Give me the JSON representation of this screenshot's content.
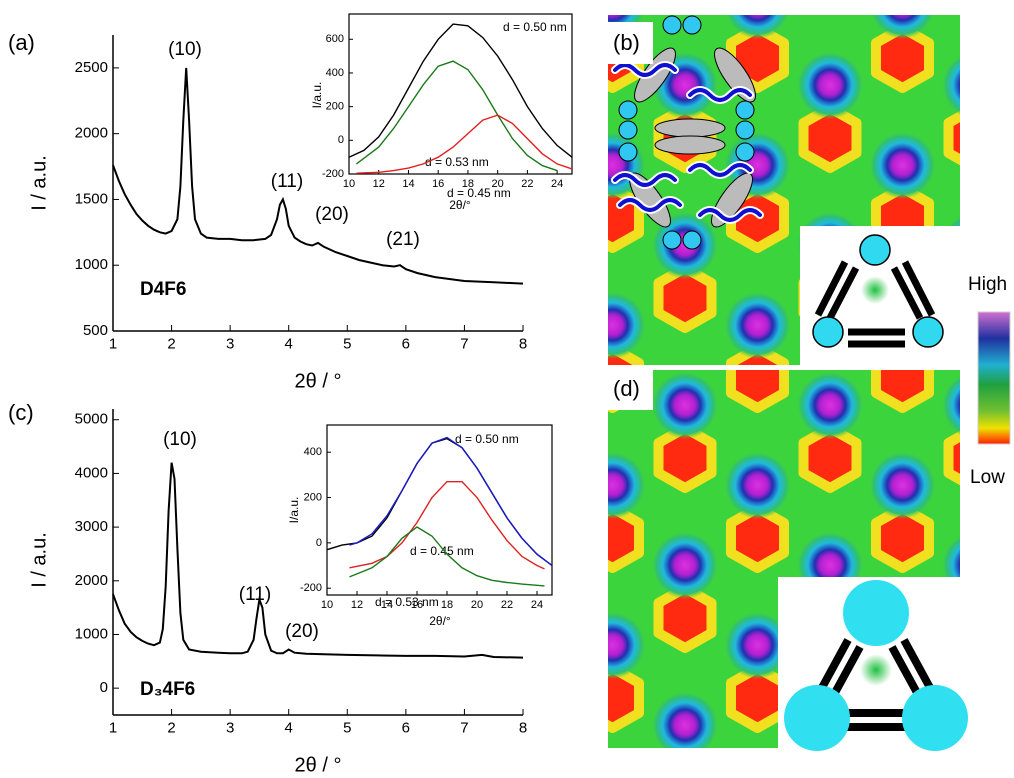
{
  "chart_data": [
    {
      "type": "line",
      "panel_label": "(a)",
      "sample": "D4F6",
      "annotations": [
        "(10)",
        "(11)",
        "(20)",
        "(21)"
      ],
      "x_label": "2θ / °",
      "y_label": "I / a.u.",
      "xlim": [
        1,
        8
      ],
      "xticks": [
        1,
        2,
        3,
        4,
        5,
        6,
        7,
        8
      ],
      "ylim": [
        500,
        2750
      ],
      "yticks": [
        500,
        1000,
        1500,
        2000,
        2500
      ],
      "series": [
        {
          "color": "#000000",
          "x": [
            1,
            1.1,
            1.2,
            1.3,
            1.4,
            1.5,
            1.6,
            1.7,
            1.8,
            1.9,
            2.0,
            2.1,
            2.15,
            2.2,
            2.25,
            2.3,
            2.35,
            2.4,
            2.5,
            2.6,
            2.8,
            3.0,
            3.2,
            3.4,
            3.6,
            3.7,
            3.8,
            3.85,
            3.9,
            3.95,
            4.0,
            4.1,
            4.2,
            4.3,
            4.4,
            4.5,
            4.6,
            4.8,
            5.0,
            5.2,
            5.4,
            5.6,
            5.8,
            5.9,
            6.0,
            6.2,
            6.5,
            7.0,
            7.5,
            8.0
          ],
          "values": [
            1760,
            1640,
            1540,
            1460,
            1390,
            1340,
            1300,
            1270,
            1250,
            1240,
            1260,
            1350,
            1600,
            2100,
            2500,
            2100,
            1600,
            1350,
            1240,
            1210,
            1200,
            1200,
            1190,
            1190,
            1200,
            1230,
            1350,
            1460,
            1500,
            1430,
            1300,
            1210,
            1180,
            1160,
            1150,
            1170,
            1140,
            1100,
            1070,
            1040,
            1020,
            1000,
            990,
            1000,
            970,
            940,
            910,
            880,
            870,
            860
          ]
        }
      ]
    },
    {
      "type": "line",
      "x_label": "2θ/°",
      "y_label": "I/a.u.",
      "xlim": [
        10,
        25
      ],
      "xticks": [
        10,
        12,
        14,
        16,
        18,
        20,
        22,
        24
      ],
      "ylim": [
        -200,
        750
      ],
      "yticks": [
        -200,
        0,
        200,
        400,
        600
      ],
      "series": [
        {
          "name": "d = 0.50 nm",
          "color": "#000000",
          "x": [
            10,
            11,
            12,
            13,
            14,
            15,
            16,
            17,
            18,
            19,
            20,
            21,
            22,
            23,
            24,
            25
          ],
          "values": [
            -100,
            -60,
            20,
            150,
            310,
            470,
            600,
            690,
            680,
            610,
            500,
            360,
            200,
            70,
            -30,
            -100
          ]
        },
        {
          "name": "d = 0.53 nm",
          "color": "#1a7a1a",
          "x": [
            10.5,
            12,
            13,
            14,
            15,
            16,
            17,
            18,
            19,
            20,
            21,
            22,
            23,
            24
          ],
          "values": [
            -140,
            -40,
            70,
            200,
            330,
            440,
            470,
            420,
            300,
            150,
            10,
            -90,
            -150,
            -180
          ]
        },
        {
          "name": "d = 0.45 nm",
          "color": "#e02020",
          "x": [
            10.5,
            12,
            13,
            14,
            15,
            16,
            17,
            18,
            19,
            20,
            21,
            22,
            23,
            24,
            25
          ],
          "values": [
            -195,
            -190,
            -180,
            -165,
            -140,
            -100,
            -40,
            40,
            120,
            150,
            100,
            10,
            -80,
            -140,
            -170
          ]
        }
      ]
    },
    {
      "type": "line",
      "panel_label": "(c)",
      "sample": "D₃4F6",
      "annotations": [
        "(10)",
        "(11)",
        "(20)"
      ],
      "x_label": "2θ / °",
      "y_label": "I / a.u.",
      "xlim": [
        1,
        8
      ],
      "xticks": [
        1,
        2,
        3,
        4,
        5,
        6,
        7,
        8
      ],
      "ylim": [
        -500,
        5200
      ],
      "yticks": [
        0,
        1000,
        2000,
        3000,
        4000,
        5000
      ],
      "series": [
        {
          "color": "#000000",
          "x": [
            1,
            1.1,
            1.2,
            1.3,
            1.4,
            1.5,
            1.6,
            1.7,
            1.8,
            1.85,
            1.9,
            1.95,
            2.0,
            2.05,
            2.1,
            2.15,
            2.2,
            2.3,
            2.5,
            2.8,
            3.0,
            3.2,
            3.3,
            3.4,
            3.45,
            3.5,
            3.55,
            3.6,
            3.7,
            3.8,
            3.9,
            4.0,
            4.1,
            4.3,
            4.6,
            5.0,
            5.5,
            6.0,
            6.5,
            7.0,
            7.3,
            7.5,
            8.0
          ],
          "values": [
            1750,
            1450,
            1200,
            1050,
            950,
            880,
            830,
            800,
            850,
            1100,
            1900,
            3300,
            4200,
            3900,
            2600,
            1400,
            900,
            720,
            680,
            660,
            650,
            650,
            680,
            900,
            1300,
            1650,
            1500,
            1000,
            700,
            650,
            650,
            720,
            660,
            640,
            630,
            620,
            610,
            600,
            600,
            590,
            620,
            580,
            570
          ]
        }
      ]
    },
    {
      "type": "line",
      "x_label": "2θ/°",
      "y_label": "I/a.u.",
      "xlim": [
        10,
        25
      ],
      "xticks": [
        10,
        12,
        14,
        16,
        18,
        20,
        22,
        24
      ],
      "ylim": [
        -230,
        520
      ],
      "yticks": [
        -200,
        0,
        200,
        400
      ],
      "series": [
        {
          "name": "d = 0.50 nm",
          "color": "#000000",
          "x": [
            10,
            11,
            12,
            13,
            14,
            15,
            16,
            17,
            18,
            19,
            20,
            21,
            22,
            23,
            24,
            25
          ],
          "values": [
            -30,
            -10,
            0,
            30,
            110,
            230,
            350,
            440,
            460,
            420,
            330,
            220,
            110,
            20,
            -50,
            -100
          ]
        },
        {
          "color": "#1a1acc",
          "x": [
            11.5,
            12,
            13,
            14,
            15,
            16,
            17,
            18,
            19,
            20,
            21,
            22,
            23,
            24,
            25
          ],
          "values": [
            -10,
            0,
            40,
            120,
            230,
            350,
            440,
            465,
            420,
            330,
            220,
            110,
            20,
            -50,
            -100
          ]
        },
        {
          "name": "d = 0.45 nm",
          "color": "#e02020",
          "x": [
            11.5,
            13,
            14,
            15,
            16,
            17,
            18,
            19,
            20,
            21,
            22,
            23,
            24,
            24.5
          ],
          "values": [
            -110,
            -90,
            -60,
            0,
            90,
            200,
            270,
            270,
            200,
            100,
            10,
            -60,
            -100,
            -115
          ]
        },
        {
          "name": "d = 0.53 nm",
          "color": "#1a7a1a",
          "x": [
            11.5,
            13,
            14,
            15,
            16,
            17,
            18,
            19,
            20,
            21,
            22,
            23,
            24,
            24.5
          ],
          "values": [
            -150,
            -110,
            -60,
            20,
            70,
            30,
            -50,
            -110,
            -145,
            -165,
            -175,
            -182,
            -187,
            -190
          ]
        }
      ]
    }
  ],
  "panels": [
    {
      "label": "(b)"
    },
    {
      "label": "(d)"
    }
  ],
  "colorbar": {
    "high": "High",
    "low": "Low"
  }
}
